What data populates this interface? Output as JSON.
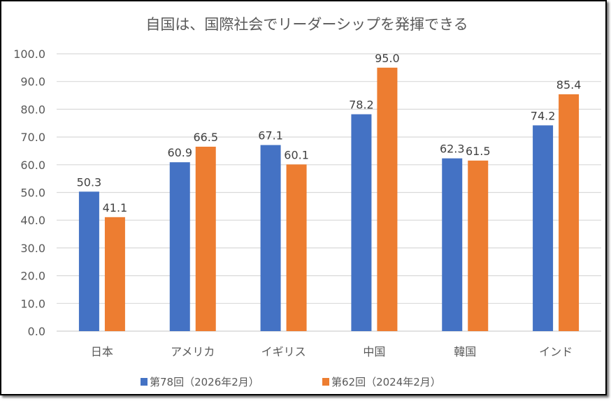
{
  "chart_data": {
    "type": "bar",
    "title": "自国は、国際社会でリーダーシップを発揮できる",
    "xlabel": "",
    "ylabel": "",
    "ylim": [
      0,
      100
    ],
    "yticks": [
      "0.0",
      "10.0",
      "20.0",
      "30.0",
      "40.0",
      "50.0",
      "60.0",
      "70.0",
      "80.0",
      "90.0",
      "100.0"
    ],
    "ytick_values": [
      0,
      10,
      20,
      30,
      40,
      50,
      60,
      70,
      80,
      90,
      100
    ],
    "grid": true,
    "legend_position": "bottom",
    "categories": [
      "日本",
      "アメリカ",
      "イギリス",
      "中国",
      "韓国",
      "インド"
    ],
    "series": [
      {
        "name": "第78回（2026年2月）",
        "color": "#4472C4",
        "values": [
          50.3,
          60.9,
          67.1,
          78.2,
          62.3,
          74.2
        ],
        "labels": [
          "50.3",
          "60.9",
          "67.1",
          "78.2",
          "62.3",
          "74.2"
        ]
      },
      {
        "name": "第62回（2024年2月）",
        "color": "#ED7D31",
        "values": [
          41.1,
          66.5,
          60.1,
          95.0,
          61.5,
          85.4
        ],
        "labels": [
          "41.1",
          "66.5",
          "60.1",
          "95.0",
          "61.5",
          "85.4"
        ]
      }
    ]
  }
}
